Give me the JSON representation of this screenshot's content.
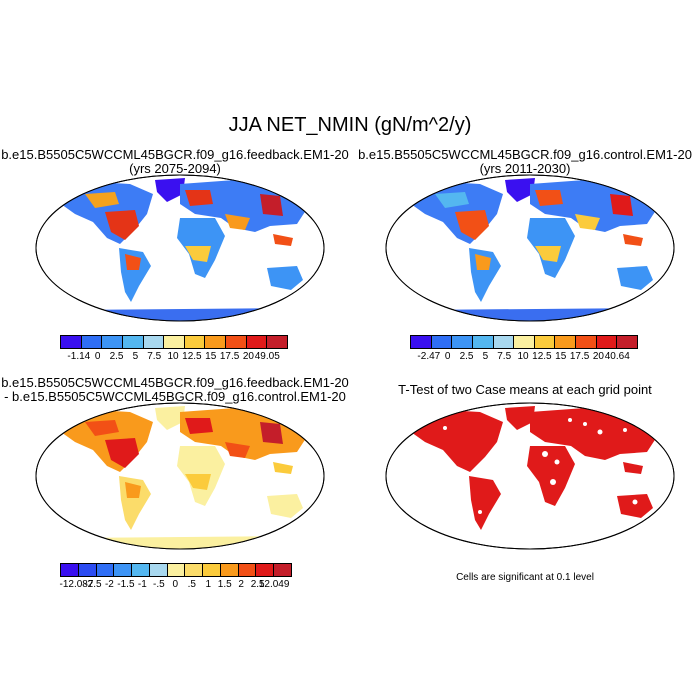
{
  "main_title": "JJA NET_NMIN (gN/m^2/y)",
  "panels": {
    "top_left": {
      "title_line1": "b.e15.B5505C5WCCML45BGCR.f09_g16.feedback.EM1-20",
      "title_line2": "(yrs 2075-2094)",
      "colorbar": {
        "colors": [
          "#3a10f0",
          "#2f6ef5",
          "#3d94f5",
          "#54b7f0",
          "#a8d8ef",
          "#fbf0a0",
          "#fbcb3c",
          "#f99a1c",
          "#f25016",
          "#e01a1a",
          "#c41e2a"
        ],
        "labels": [
          "-1.14",
          "0",
          "2.5",
          "5",
          "7.5",
          "10",
          "12.5",
          "15",
          "17.5",
          "20",
          "49.05"
        ]
      }
    },
    "top_right": {
      "title_line1": "b.e15.B5505C5WCCML45BGCR.f09_g16.control.EM1-20",
      "title_line2": "(yrs 2011-2030)",
      "colorbar": {
        "colors": [
          "#3a10f0",
          "#2f6ef5",
          "#3d94f5",
          "#54b7f0",
          "#a8d8ef",
          "#fbf0a0",
          "#fbcb3c",
          "#f99a1c",
          "#f25016",
          "#e01a1a",
          "#c41e2a"
        ],
        "labels": [
          "-2.47",
          "0",
          "2.5",
          "5",
          "7.5",
          "10",
          "12.5",
          "15",
          "17.5",
          "20",
          "40.64"
        ]
      }
    },
    "bottom_left": {
      "title_line1": "b.e15.B5505C5WCCML45BGCR.f09_g16.feedback.EM1-20",
      "title_line2": "- b.e15.B5505C5WCCML45BGCR.f09_g16.control.EM1-20",
      "colorbar": {
        "colors": [
          "#3a10f0",
          "#2c4cf2",
          "#2f6ef5",
          "#3d94f5",
          "#54b7f0",
          "#a8d8ef",
          "#fbf0a0",
          "#fbdc6a",
          "#fbcb3c",
          "#f99a1c",
          "#f25016",
          "#e01a1a",
          "#c41e2a"
        ],
        "labels": [
          "-12.087",
          "-2.5",
          "-2",
          "-1.5",
          "-1",
          "-.5",
          "0",
          ".5",
          "1",
          "1.5",
          "2",
          "2.5",
          "12.049"
        ]
      }
    },
    "bottom_right": {
      "title": "T-Test of two Case means at each grid point",
      "note": "Cells are significant at 0.1 level"
    }
  }
}
